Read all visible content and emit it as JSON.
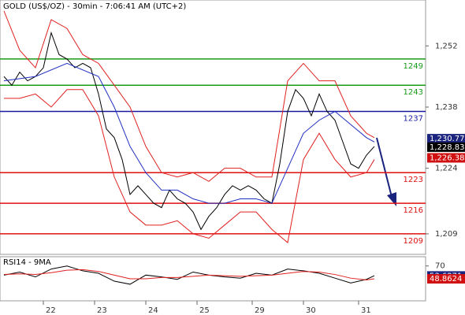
{
  "chart_data": [
    {
      "type": "line",
      "title": "GOLD (US$/OZ) - 30min - 7:06:41 AM (UTC+2)",
      "xlim": [
        0,
        108
      ],
      "xticks": [
        {
          "value": 11,
          "label": "22"
        },
        {
          "value": 24,
          "label": "23"
        },
        {
          "value": 37,
          "label": "24"
        },
        {
          "value": 50,
          "label": "25"
        },
        {
          "value": 64,
          "label": "29"
        },
        {
          "value": 77,
          "label": "30"
        },
        {
          "value": 91,
          "label": "31"
        }
      ],
      "ylim": [
        1204.3,
        1262.5
      ],
      "yticks": [
        {
          "value": 1209,
          "label": "1,209"
        },
        {
          "value": 1224,
          "label": "1,224"
        },
        {
          "value": 1238,
          "label": "1,238"
        },
        {
          "value": 1252,
          "label": "1,252"
        }
      ],
      "series": [
        {
          "color": "#000000",
          "x": [
            1,
            3,
            5,
            7,
            9,
            11,
            13,
            15,
            17,
            19,
            21,
            23,
            25,
            27,
            29,
            31,
            33,
            35,
            37,
            39,
            41,
            43,
            45,
            47,
            49,
            51,
            53,
            55,
            57,
            59,
            61,
            63,
            65,
            67,
            69,
            71,
            73,
            75,
            77,
            79,
            81,
            83,
            85,
            87,
            89,
            91,
            93,
            95
          ],
          "values": [
            1245,
            1243,
            1246,
            1244,
            1245,
            1247,
            1255,
            1250,
            1249,
            1247,
            1248,
            1247,
            1241,
            1233,
            1231,
            1226,
            1218,
            1220,
            1218,
            1216,
            1215,
            1219,
            1217,
            1216,
            1214,
            1210,
            1213,
            1215,
            1218,
            1220,
            1219,
            1220,
            1219,
            1217,
            1216,
            1225,
            1237,
            1242,
            1240,
            1236,
            1241,
            1237,
            1235,
            1230,
            1225,
            1224,
            1227,
            1229
          ]
        },
        {
          "color": "#e02020",
          "x": [
            1,
            5,
            9,
            13,
            17,
            21,
            25,
            29,
            33,
            37,
            41,
            45,
            49,
            53,
            57,
            61,
            65,
            69,
            73,
            77,
            81,
            85,
            89,
            93,
            95
          ],
          "values": [
            1260,
            1251,
            1247,
            1258,
            1256,
            1250,
            1248,
            1243,
            1238,
            1229,
            1223,
            1222,
            1223,
            1221,
            1224,
            1224,
            1222,
            1222,
            1244,
            1248,
            1244,
            1244,
            1236,
            1232,
            1231
          ]
        },
        {
          "color": "#e02020",
          "x": [
            1,
            5,
            9,
            13,
            17,
            21,
            25,
            29,
            33,
            37,
            41,
            45,
            49,
            53,
            57,
            61,
            65,
            69,
            73,
            77,
            81,
            85,
            89,
            93,
            95
          ],
          "values": [
            1240,
            1240,
            1241,
            1238,
            1242,
            1242,
            1236,
            1222,
            1214,
            1211,
            1211,
            1212,
            1209,
            1208,
            1211,
            1214,
            1214,
            1210,
            1207,
            1226,
            1232,
            1226,
            1222,
            1223,
            1226
          ]
        },
        {
          "color": "#2030c0",
          "x": [
            1,
            9,
            17,
            25,
            29,
            33,
            37,
            41,
            45,
            49,
            53,
            57,
            61,
            65,
            69,
            73,
            77,
            81,
            85,
            89,
            93,
            95
          ],
          "values": [
            1244,
            1245,
            1248,
            1245,
            1238,
            1229,
            1223,
            1219,
            1219,
            1217,
            1216,
            1216,
            1217,
            1217,
            1216,
            1224,
            1232,
            1235,
            1237,
            1234,
            1231,
            1230
          ]
        }
      ],
      "levels": [
        {
          "value": 1249,
          "color": "#1a9a1a"
        },
        {
          "value": 1243,
          "color": "#1a9a1a"
        },
        {
          "value": 1237,
          "color": "#1a1aa0"
        },
        {
          "value": 1223,
          "color": "#e01010"
        },
        {
          "value": 1216,
          "color": "#e01010"
        },
        {
          "value": 1209,
          "color": "#e01010"
        }
      ],
      "price_tags": [
        {
          "value": 1230.77,
          "label": "1,230.77",
          "color": "#1a237e"
        },
        {
          "value": 1228.83,
          "label": "1,228.83",
          "color": "#000000"
        },
        {
          "value": 1226.38,
          "label": "1,226.38",
          "color": "#d01010"
        }
      ]
    },
    {
      "type": "line",
      "title": "RSI14 - 9MA",
      "xlim": [
        0,
        108
      ],
      "ylim": [
        12.7,
        85.2
      ],
      "yticks": [
        70
      ],
      "series": [
        {
          "color": "#000000",
          "x": [
            1,
            5,
            9,
            13,
            17,
            21,
            25,
            29,
            33,
            37,
            41,
            45,
            49,
            53,
            57,
            61,
            65,
            69,
            73,
            77,
            81,
            85,
            89,
            93,
            95
          ],
          "values": [
            55,
            60,
            52,
            65,
            70,
            62,
            58,
            45,
            40,
            55,
            52,
            48,
            60,
            55,
            52,
            50,
            58,
            55,
            65,
            62,
            58,
            50,
            42,
            48,
            54
          ]
        },
        {
          "color": "#e02020",
          "x": [
            1,
            5,
            9,
            13,
            17,
            21,
            25,
            29,
            33,
            37,
            41,
            45,
            49,
            53,
            57,
            61,
            65,
            69,
            73,
            77,
            81,
            85,
            89,
            93,
            95
          ],
          "values": [
            56,
            57,
            56,
            59,
            63,
            64,
            61,
            55,
            49,
            49,
            51,
            51,
            53,
            55,
            54,
            53,
            54,
            55,
            58,
            61,
            60,
            56,
            50,
            47,
            49
          ]
        }
      ],
      "price_tags": [
        {
          "value": 53.6271,
          "color": "#1a237e"
        },
        {
          "value": 48.8624,
          "color": "#d01010"
        }
      ]
    }
  ]
}
